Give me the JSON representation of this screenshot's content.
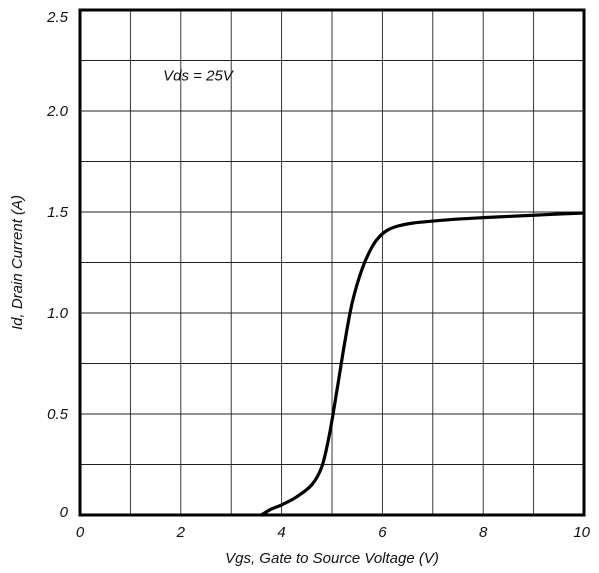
{
  "chart_data": {
    "type": "line",
    "xlabel": "Vgs, Gate to Source Voltage (V)",
    "ylabel": "Id, Drain Current (A)",
    "xlim": [
      0,
      10
    ],
    "ylim": [
      0,
      2.5
    ],
    "x_ticks": [
      0,
      2,
      4,
      6,
      8,
      10
    ],
    "x_tick_labels": [
      "0",
      "2",
      "4",
      "6",
      "8",
      "10"
    ],
    "y_ticks": [
      0,
      0.5,
      1.0,
      1.5,
      2.0,
      2.5
    ],
    "y_tick_labels": [
      "0",
      "0.5",
      "1.0",
      "1.5",
      "2.0",
      "2.5"
    ],
    "x_grid_step": 1,
    "y_grid_step": 0.25,
    "grid": true,
    "annotation": "Vds = 25V",
    "series": [
      {
        "x": [
          3.6,
          3.8,
          4.0,
          4.3,
          4.6,
          4.8,
          4.95,
          5.1,
          5.25,
          5.4,
          5.6,
          5.8,
          5.95,
          6.1,
          6.3,
          6.6,
          7.0,
          7.5,
          8.0,
          8.5,
          9.0,
          9.5,
          10.0
        ],
        "y": [
          0.0,
          0.03,
          0.05,
          0.09,
          0.15,
          0.24,
          0.4,
          0.62,
          0.85,
          1.05,
          1.22,
          1.33,
          1.38,
          1.41,
          1.43,
          1.445,
          1.455,
          1.465,
          1.472,
          1.478,
          1.484,
          1.49,
          1.495
        ]
      }
    ]
  }
}
